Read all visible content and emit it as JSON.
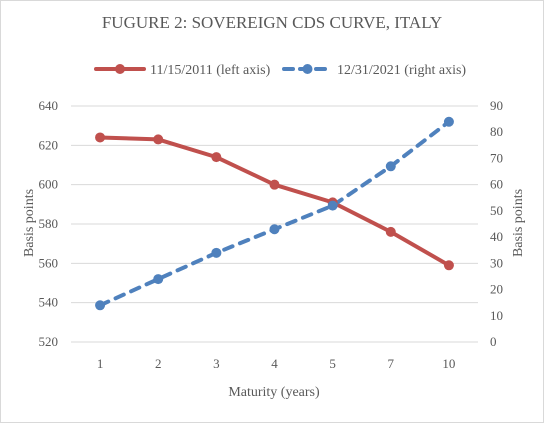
{
  "chart_data": {
    "type": "line",
    "title": "FUGURE 2:  SOVEREIGN CDS CURVE, ITALY",
    "xlabel": "Maturity (years)",
    "ylabel_left": "Basis points",
    "ylabel_right": "Basis points",
    "categories": [
      "1",
      "2",
      "3",
      "4",
      "5",
      "7",
      "10"
    ],
    "ylim_left": [
      520,
      640
    ],
    "yticks_left": [
      520,
      540,
      560,
      580,
      600,
      620,
      640
    ],
    "ylim_right": [
      0,
      90
    ],
    "yticks_right": [
      0,
      10,
      20,
      30,
      40,
      50,
      60,
      70,
      80,
      90
    ],
    "grid": true,
    "legend_position": "top",
    "series": [
      {
        "name": "11/15/2011 (left axis)",
        "axis": "left",
        "style": "solid",
        "color": "#c0504d",
        "values": [
          624,
          623,
          614,
          600,
          591,
          576,
          559
        ]
      },
      {
        "name": "12/31/2021 (right axis)",
        "axis": "right",
        "style": "dashed",
        "color": "#4f81bd",
        "values": [
          14,
          24,
          34,
          43,
          52,
          67,
          84
        ]
      }
    ]
  }
}
